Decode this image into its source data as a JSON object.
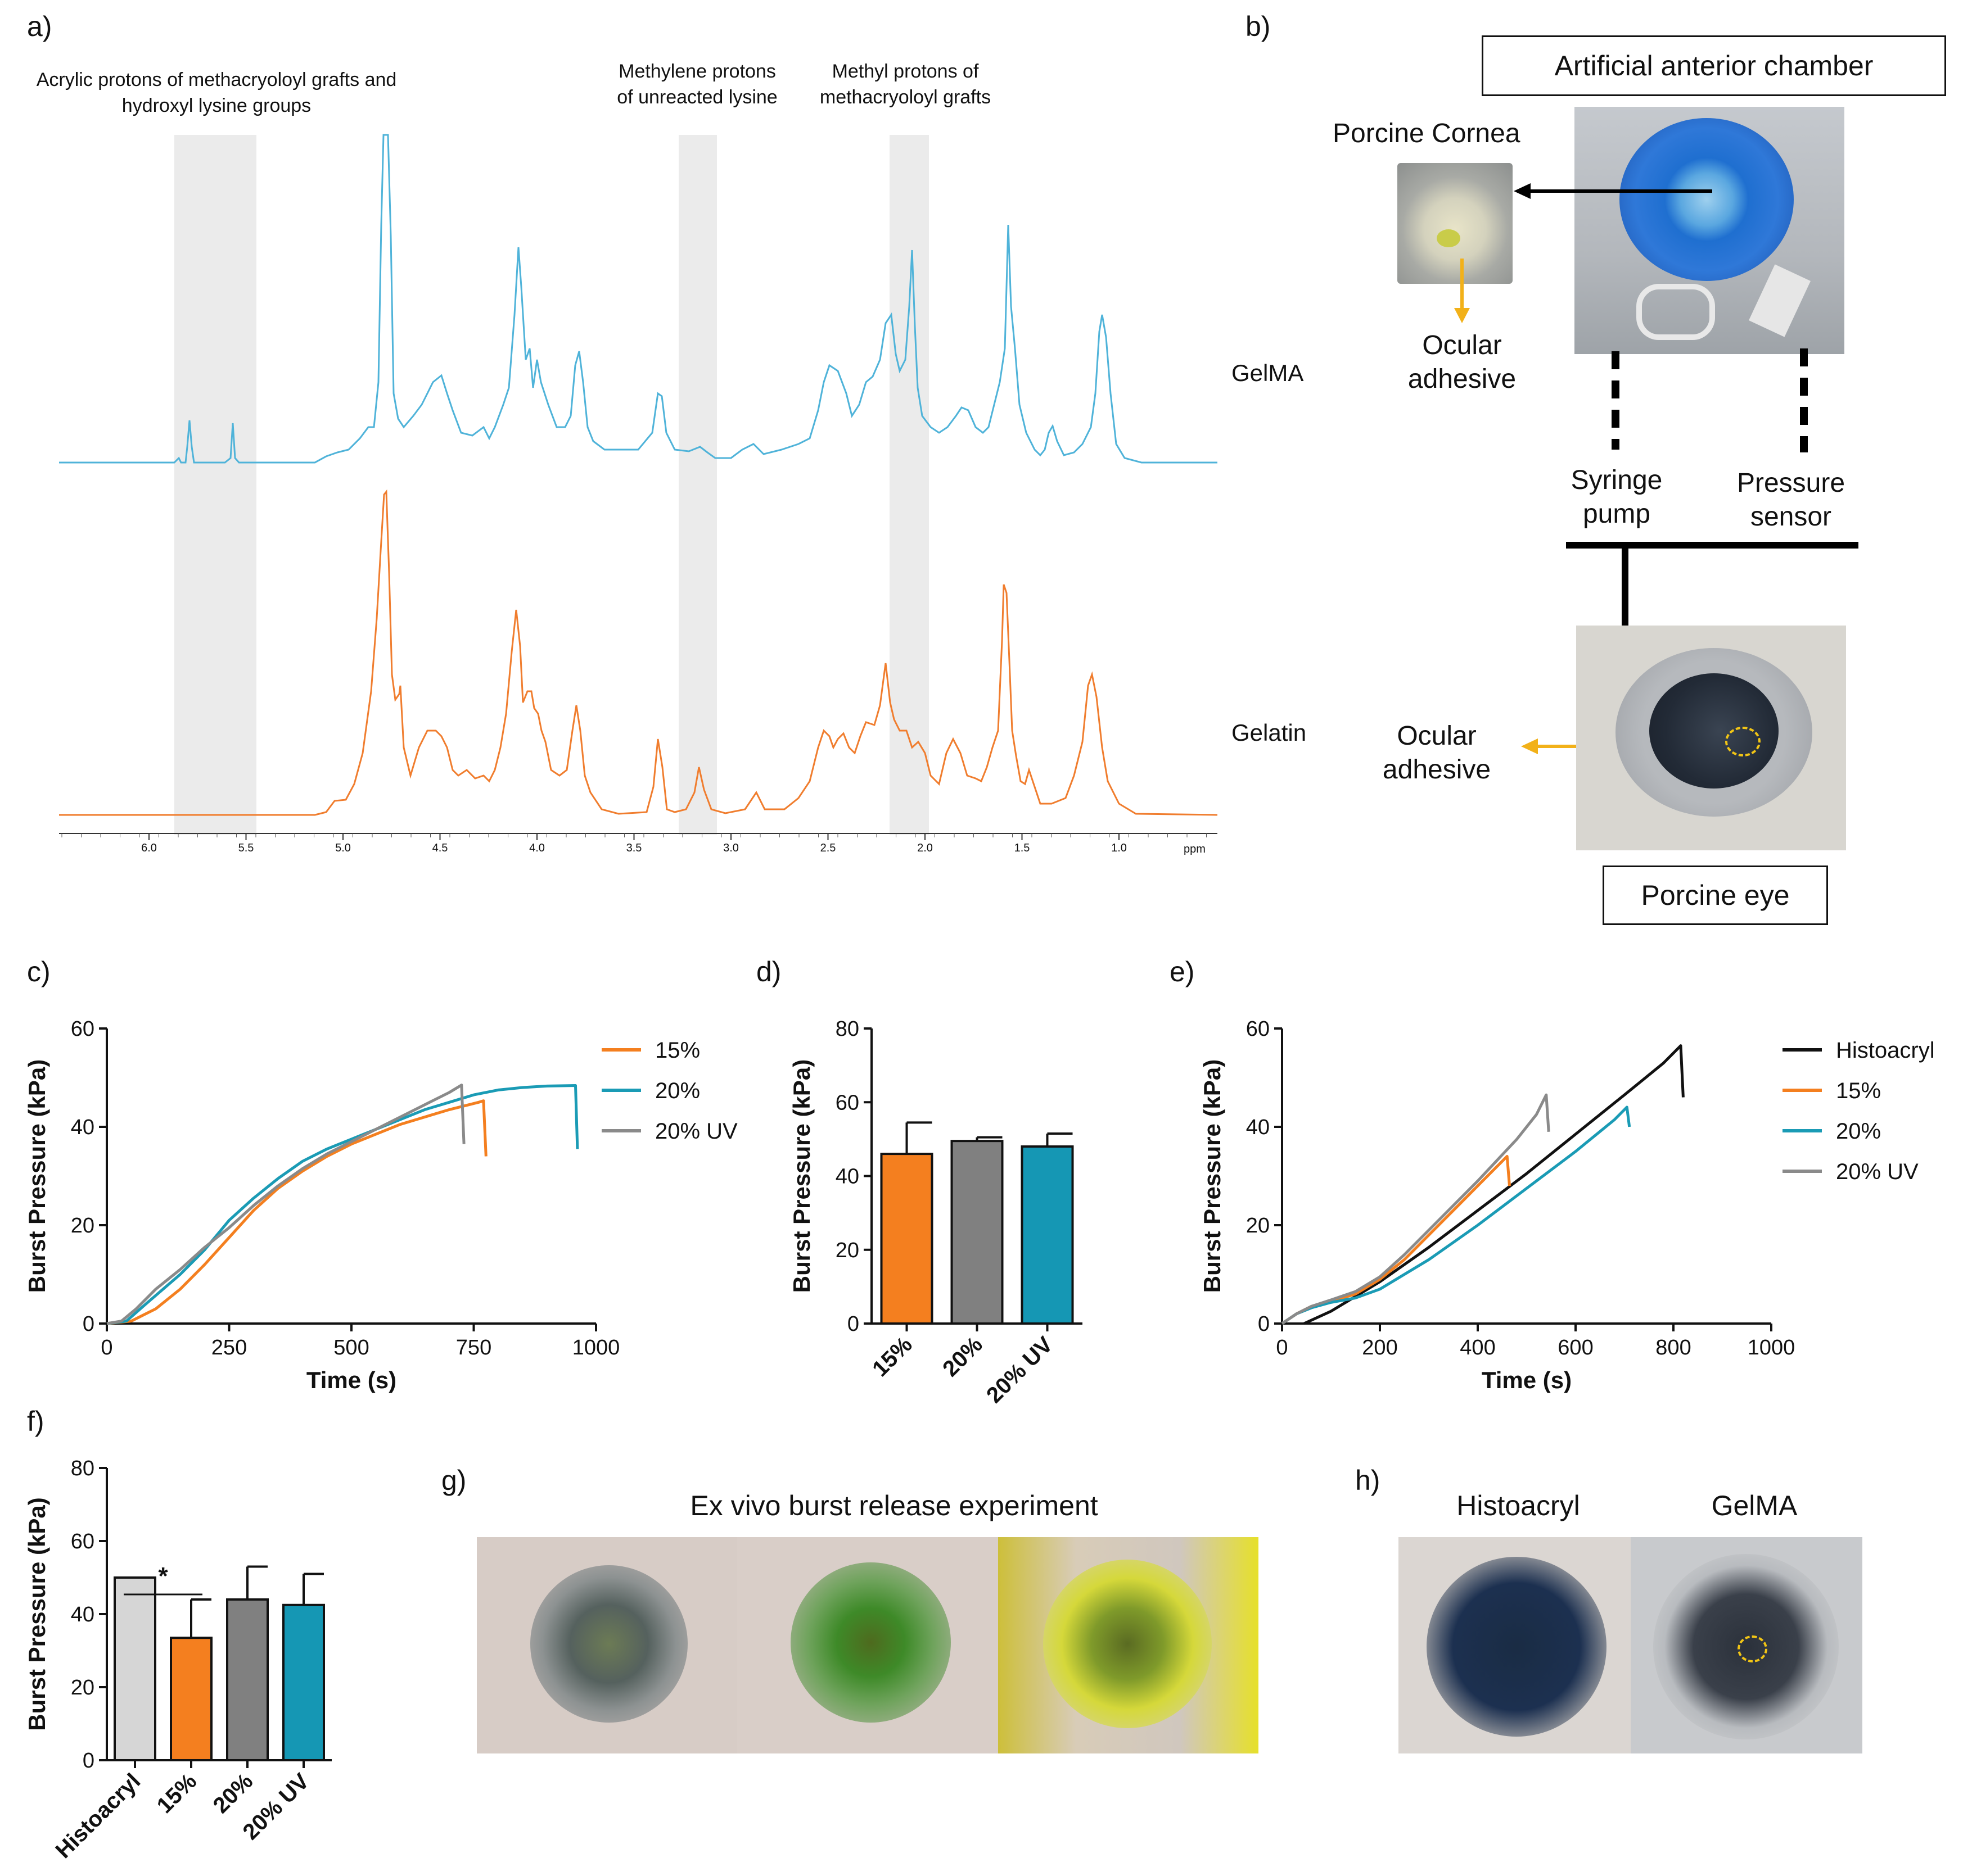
{
  "panels": {
    "a": "a)",
    "b": "b)",
    "c": "c)",
    "d": "d)",
    "e": "e)",
    "f": "f)",
    "g": "g)",
    "h": "h)"
  },
  "nmr": {
    "annotations": [
      "Acrylic protons of methacryoloyl grafts and hydroxyl lysine groups",
      "Methylene protons of unreacted lysine",
      "Methyl protons of methacryoloyl grafts"
    ],
    "spectra": [
      "GelMA",
      "Gelatin"
    ],
    "axis_ticks": [
      "6.0",
      "5.5",
      "5.0",
      "4.5",
      "4.0",
      "3.5",
      "3.0",
      "2.5",
      "2.0",
      "1.5",
      "1.0"
    ],
    "axis_unit": "ppm",
    "colors": {
      "gelma": "#4fb3d9",
      "gelatin": "#f07d2e",
      "band": "#e6e6e6"
    }
  },
  "setup": {
    "chamber_title": "Artificial anterior chamber",
    "porcine_cornea": "Porcine Cornea",
    "ocular_adhesive_top": "Ocular adhesive",
    "syringe_pump": "Syringe pump",
    "pressure_sensor": "Pressure sensor",
    "ocular_adhesive_eye": "Ocular adhesive",
    "porcine_eye": "Porcine eye"
  },
  "chart_data": [
    {
      "panel": "c",
      "type": "line",
      "xlabel": "Time (s)",
      "ylabel": "Burst Pressure (kPa)",
      "xlim": [
        0,
        1000
      ],
      "ylim": [
        0,
        60
      ],
      "xticks": [
        "0",
        "250",
        "500",
        "750",
        "1000"
      ],
      "yticks": [
        "0",
        "20",
        "40",
        "60"
      ],
      "series": [
        {
          "name": "15%",
          "color": "#f47f1f",
          "points": [
            [
              0,
              0
            ],
            [
              50,
              0.5
            ],
            [
              100,
              3
            ],
            [
              150,
              7
            ],
            [
              200,
              12
            ],
            [
              250,
              17.5
            ],
            [
              300,
              23
            ],
            [
              350,
              27.5
            ],
            [
              400,
              31
            ],
            [
              450,
              34
            ],
            [
              500,
              36.5
            ],
            [
              550,
              38.5
            ],
            [
              600,
              40.5
            ],
            [
              650,
              42
            ],
            [
              700,
              43.5
            ],
            [
              760,
              45
            ],
            [
              770,
              45.3
            ],
            [
              775,
              34
            ]
          ]
        },
        {
          "name": "20%",
          "color": "#1a9bb5",
          "points": [
            [
              0,
              0
            ],
            [
              40,
              0.5
            ],
            [
              80,
              4
            ],
            [
              150,
              10
            ],
            [
              200,
              15
            ],
            [
              250,
              21
            ],
            [
              300,
              25.5
            ],
            [
              350,
              29.5
            ],
            [
              400,
              33
            ],
            [
              450,
              35.5
            ],
            [
              500,
              37.5
            ],
            [
              550,
              39.5
            ],
            [
              600,
              41.5
            ],
            [
              650,
              43.5
            ],
            [
              700,
              45
            ],
            [
              750,
              46.5
            ],
            [
              800,
              47.5
            ],
            [
              850,
              48
            ],
            [
              900,
              48.3
            ],
            [
              958,
              48.4
            ],
            [
              962,
              35.5
            ]
          ]
        },
        {
          "name": "20% UV",
          "color": "#8a8a8a",
          "points": [
            [
              0,
              0
            ],
            [
              30,
              0.5
            ],
            [
              60,
              3
            ],
            [
              100,
              7
            ],
            [
              150,
              11
            ],
            [
              200,
              15.5
            ],
            [
              250,
              19.5
            ],
            [
              300,
              24
            ],
            [
              350,
              28
            ],
            [
              400,
              31.5
            ],
            [
              450,
              34.5
            ],
            [
              500,
              37
            ],
            [
              550,
              39.5
            ],
            [
              600,
              42
            ],
            [
              650,
              44.5
            ],
            [
              700,
              47
            ],
            [
              725,
              48.5
            ],
            [
              730,
              36.5
            ]
          ]
        }
      ]
    },
    {
      "panel": "d",
      "type": "bar",
      "ylabel": "Burst Pressure (kPa)",
      "ylim": [
        0,
        80
      ],
      "yticks": [
        "0",
        "20",
        "40",
        "60",
        "80"
      ],
      "categories": [
        "15%",
        "20%",
        "20% UV"
      ],
      "values": [
        46,
        49.5,
        48
      ],
      "errors": [
        8.5,
        1,
        3.5
      ],
      "colors": [
        "#f47f1f",
        "#808080",
        "#1597b4"
      ]
    },
    {
      "panel": "e",
      "type": "line",
      "xlabel": "Time (s)",
      "ylabel": "Burst Pressure (kPa)",
      "xlim": [
        0,
        1000
      ],
      "ylim": [
        0,
        60
      ],
      "xticks": [
        "0",
        "200",
        "400",
        "600",
        "800",
        "1000"
      ],
      "yticks": [
        "0",
        "20",
        "40",
        "60"
      ],
      "series": [
        {
          "name": "Histoacryl",
          "color": "#111111",
          "points": [
            [
              45,
              0
            ],
            [
              100,
              2.5
            ],
            [
              150,
              5.5
            ],
            [
              200,
              8.5
            ],
            [
              300,
              15.5
            ],
            [
              400,
              23
            ],
            [
              500,
              30.5
            ],
            [
              600,
              38.5
            ],
            [
              700,
              46.5
            ],
            [
              780,
              53
            ],
            [
              815,
              56.5
            ],
            [
              820,
              46
            ]
          ]
        },
        {
          "name": "15%",
          "color": "#f47f1f",
          "points": [
            [
              0,
              0
            ],
            [
              30,
              2
            ],
            [
              60,
              3.5
            ],
            [
              100,
              4.5
            ],
            [
              150,
              6
            ],
            [
              200,
              9
            ],
            [
              250,
              13
            ],
            [
              300,
              18
            ],
            [
              350,
              23
            ],
            [
              400,
              28
            ],
            [
              440,
              32
            ],
            [
              460,
              34
            ],
            [
              465,
              28
            ]
          ]
        },
        {
          "name": "20%",
          "color": "#1a9bb5",
          "points": [
            [
              0,
              0
            ],
            [
              30,
              2
            ],
            [
              60,
              3.2
            ],
            [
              100,
              4.3
            ],
            [
              150,
              5.2
            ],
            [
              200,
              7
            ],
            [
              300,
              13
            ],
            [
              400,
              20
            ],
            [
              500,
              27.5
            ],
            [
              600,
              35
            ],
            [
              680,
              41.5
            ],
            [
              705,
              44
            ],
            [
              710,
              40
            ]
          ]
        },
        {
          "name": "20% UV",
          "color": "#8a8a8a",
          "points": [
            [
              0,
              0
            ],
            [
              30,
              2
            ],
            [
              60,
              3.5
            ],
            [
              100,
              4.8
            ],
            [
              150,
              6.5
            ],
            [
              200,
              9.5
            ],
            [
              250,
              14
            ],
            [
              300,
              19
            ],
            [
              400,
              29
            ],
            [
              480,
              37.5
            ],
            [
              520,
              42.5
            ],
            [
              540,
              46.5
            ],
            [
              545,
              39
            ]
          ]
        }
      ]
    },
    {
      "panel": "f",
      "type": "bar",
      "ylabel": "Burst Pressure (kPa)",
      "ylim": [
        0,
        80
      ],
      "yticks": [
        "0",
        "20",
        "40",
        "60",
        "80"
      ],
      "categories": [
        "Histoacryl",
        "15%",
        "20%",
        "20% UV"
      ],
      "values": [
        50,
        33.5,
        44,
        42.5
      ],
      "errors": [
        0,
        10.5,
        9,
        8.5
      ],
      "colors": [
        "#d6d6d6",
        "#f47f1f",
        "#808080",
        "#1597b4"
      ],
      "significance": "*"
    }
  ],
  "burst_photos": {
    "title": "Ex vivo burst release experiment"
  },
  "comparison_photos": {
    "left": "Histoacryl",
    "right": "GelMA"
  }
}
